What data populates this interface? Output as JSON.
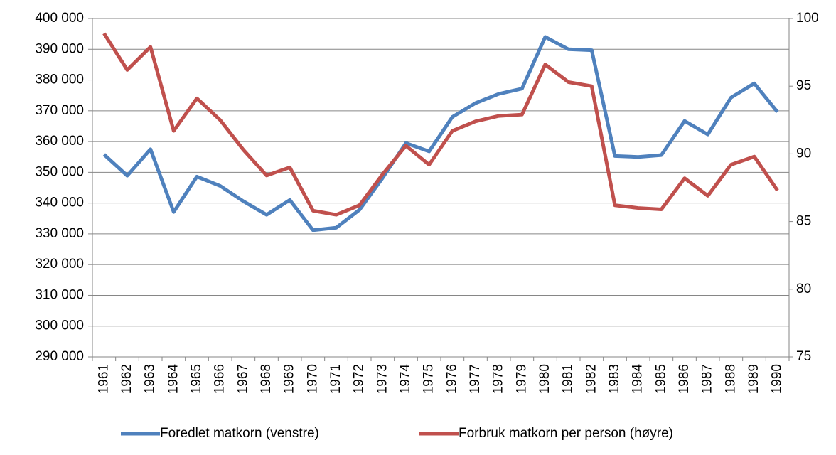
{
  "chart_data": {
    "type": "line",
    "categories": [
      "1961",
      "1962",
      "1963",
      "1964",
      "1965",
      "1966",
      "1967",
      "1968",
      "1969",
      "1970",
      "1971",
      "1972",
      "1973",
      "1974",
      "1975",
      "1976",
      "1977",
      "1978",
      "1979",
      "1980",
      "1981",
      "1982",
      "1983",
      "1984",
      "1985",
      "1986",
      "1987",
      "1988",
      "1989",
      "1990"
    ],
    "series": [
      {
        "name": "Foredlet matkorn (venstre)",
        "color": "#4f81bd",
        "values": [
          355800,
          348900,
          357500,
          337100,
          348600,
          345600,
          340600,
          336200,
          341000,
          331200,
          332000,
          337800,
          348200,
          359500,
          356800,
          368000,
          372500,
          375500,
          377200,
          394000,
          390000,
          389700,
          355300,
          355000,
          355600,
          366700,
          362300,
          374300,
          378900,
          369600
        ]
      },
      {
        "name": "Forbruk matkorn per person (høyre)",
        "color": "#c0504d",
        "axis": "y2",
        "values": [
          98.9,
          96.2,
          97.9,
          91.7,
          94.1,
          92.5,
          90.3,
          88.4,
          89.0,
          85.8,
          85.5,
          86.2,
          88.5,
          90.6,
          89.2,
          91.7,
          92.4,
          92.8,
          92.9,
          96.6,
          95.3,
          95.0,
          86.2,
          86.0,
          85.9,
          88.2,
          86.9,
          89.2,
          89.8,
          87.3
        ]
      }
    ],
    "ylim": [
      290000,
      400000
    ],
    "yticks": [
      {
        "value": 290000,
        "label": "290 000"
      },
      {
        "value": 300000,
        "label": "300 000"
      },
      {
        "value": 310000,
        "label": "310 000"
      },
      {
        "value": 320000,
        "label": "320 000"
      },
      {
        "value": 330000,
        "label": "330 000"
      },
      {
        "value": 340000,
        "label": "340 000"
      },
      {
        "value": 350000,
        "label": "350 000"
      },
      {
        "value": 360000,
        "label": "360 000"
      },
      {
        "value": 370000,
        "label": "370 000"
      },
      {
        "value": 380000,
        "label": "380 000"
      },
      {
        "value": 390000,
        "label": "390 000"
      },
      {
        "value": 400000,
        "label": "400 000"
      }
    ],
    "y2lim": [
      75,
      100
    ],
    "y2ticks": [
      75,
      80,
      85,
      90,
      95,
      100
    ],
    "grid": true,
    "legend": "bottom"
  }
}
